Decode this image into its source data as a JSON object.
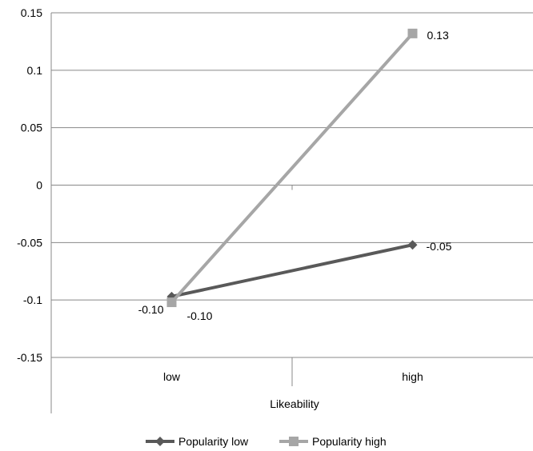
{
  "chart_data": {
    "type": "line",
    "title": "",
    "xlabel": "Likeability",
    "ylabel": "",
    "categories": [
      "low",
      "high"
    ],
    "ylim": [
      -0.15,
      0.15
    ],
    "yticks": [
      0.15,
      0.1,
      0.05,
      0,
      -0.05,
      -0.1,
      -0.15
    ],
    "ytick_labels": [
      "0.15",
      "0.1",
      "0.05",
      "0",
      "-0.05",
      "-0.1",
      "-0.15"
    ],
    "grid": true,
    "legend_position": "bottom",
    "series": [
      {
        "name": "Popularity low",
        "values": [
          -0.097,
          -0.052
        ],
        "labels": [
          "-0.10",
          "-0.05"
        ],
        "color": "#595959",
        "marker": "diamond"
      },
      {
        "name": "Popularity high",
        "values": [
          -0.102,
          0.132
        ],
        "labels": [
          "-0.10",
          "0.13"
        ],
        "color": "#a6a6a6",
        "marker": "square"
      }
    ]
  }
}
